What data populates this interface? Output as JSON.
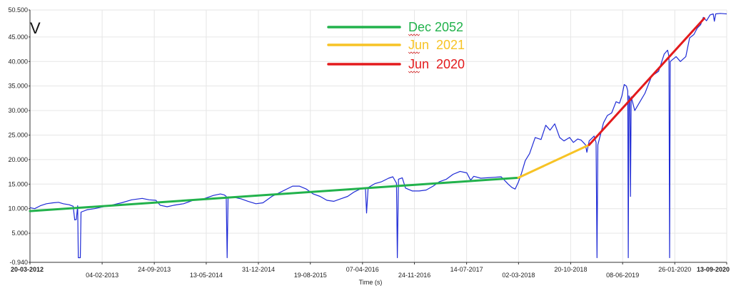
{
  "chart_data": {
    "type": "line",
    "panel_label": "V",
    "xlabel": "Time (s)",
    "ylabel": "",
    "ylim": [
      -0.94,
      50.5
    ],
    "y_ticks": [
      "50.500",
      "45.000",
      "40.000",
      "35.000",
      "30.000",
      "25.000",
      "20.000",
      "15.000",
      "10.000",
      "5.000",
      "-0.940"
    ],
    "y_tick_values": [
      50.5,
      45,
      40,
      35,
      30,
      25,
      20,
      15,
      10,
      5,
      -0.94
    ],
    "xlim": [
      "2012-03-20",
      "2020-09-13"
    ],
    "x_ticks": [
      {
        "label": "20-03-2012",
        "date": "2012-03-20",
        "row": 1,
        "bold": true
      },
      {
        "label": "04-02-2013",
        "date": "2013-02-04",
        "row": 2,
        "bold": false
      },
      {
        "label": "24-09-2013",
        "date": "2013-09-24",
        "row": 1,
        "bold": false
      },
      {
        "label": "13-05-2014",
        "date": "2014-05-13",
        "row": 2,
        "bold": false
      },
      {
        "label": "31-12-2014",
        "date": "2014-12-31",
        "row": 1,
        "bold": false
      },
      {
        "label": "19-08-2015",
        "date": "2015-08-19",
        "row": 2,
        "bold": false
      },
      {
        "label": "07-04-2016",
        "date": "2016-04-07",
        "row": 1,
        "bold": false
      },
      {
        "label": "24-11-2016",
        "date": "2016-11-24",
        "row": 2,
        "bold": false
      },
      {
        "label": "14-07-2017",
        "date": "2017-07-14",
        "row": 1,
        "bold": false
      },
      {
        "label": "02-03-2018",
        "date": "2018-03-02",
        "row": 2,
        "bold": false
      },
      {
        "label": "20-10-2018",
        "date": "2018-10-20",
        "row": 1,
        "bold": false
      },
      {
        "label": "08-06-2019",
        "date": "2019-06-08",
        "row": 2,
        "bold": false
      },
      {
        "label": "26-01-2020",
        "date": "2020-01-26",
        "row": 1,
        "bold": false
      },
      {
        "label": "13-09-2020",
        "date": "2020-09-13",
        "row": 1,
        "bold": true
      }
    ],
    "grid": true,
    "legend_position": "top-center",
    "colors": {
      "series": "#1f2bd6",
      "trend_dec2052": "#22b24c",
      "trend_jun2021": "#f7c325",
      "trend_jun2020": "#e31a1c",
      "grid": "#e6e6e6"
    },
    "series": [
      {
        "name": "",
        "color": "#1f2bd6",
        "points": [
          [
            "2012-03-20",
            10.2
          ],
          [
            "2012-04-10",
            10.0
          ],
          [
            "2012-05-05",
            10.6
          ],
          [
            "2012-06-01",
            11.0
          ],
          [
            "2012-07-01",
            11.2
          ],
          [
            "2012-07-25",
            11.3
          ],
          [
            "2012-08-15",
            11.0
          ],
          [
            "2012-09-10",
            10.8
          ],
          [
            "2012-09-28",
            10.5
          ],
          [
            "2012-10-05",
            7.7
          ],
          [
            "2012-10-12",
            7.8
          ],
          [
            "2012-10-18",
            10.6
          ],
          [
            "2012-10-21",
            0.0
          ],
          [
            "2012-10-30",
            0.0
          ],
          [
            "2012-11-02",
            9.3
          ],
          [
            "2012-12-01",
            9.8
          ],
          [
            "2013-01-01",
            10.0
          ],
          [
            "2013-02-01",
            10.3
          ],
          [
            "2013-03-15",
            10.7
          ],
          [
            "2013-05-01",
            11.2
          ],
          [
            "2013-06-15",
            11.8
          ],
          [
            "2013-08-01",
            12.1
          ],
          [
            "2013-09-01",
            11.8
          ],
          [
            "2013-10-01",
            11.7
          ],
          [
            "2013-10-20",
            10.7
          ],
          [
            "2013-11-20",
            10.4
          ],
          [
            "2013-12-20",
            10.7
          ],
          [
            "2014-02-01",
            11.0
          ],
          [
            "2014-03-15",
            11.7
          ],
          [
            "2014-05-01",
            12.0
          ],
          [
            "2014-06-15",
            12.7
          ],
          [
            "2014-07-15",
            13.0
          ],
          [
            "2014-08-01",
            12.8
          ],
          [
            "2014-08-10",
            12.5
          ],
          [
            "2014-08-14",
            0.0
          ],
          [
            "2014-08-18",
            12.4
          ],
          [
            "2014-09-15",
            12.3
          ],
          [
            "2014-10-15",
            12.0
          ],
          [
            "2014-11-15",
            11.5
          ],
          [
            "2014-12-20",
            11.0
          ],
          [
            "2015-01-20",
            11.2
          ],
          [
            "2015-03-01",
            12.5
          ],
          [
            "2015-04-15",
            13.5
          ],
          [
            "2015-06-01",
            14.6
          ],
          [
            "2015-07-01",
            14.6
          ],
          [
            "2015-08-01",
            14.0
          ],
          [
            "2015-09-01",
            13.0
          ],
          [
            "2015-10-01",
            12.5
          ],
          [
            "2015-11-01",
            11.7
          ],
          [
            "2015-12-01",
            11.5
          ],
          [
            "2016-01-01",
            12.0
          ],
          [
            "2016-02-01",
            12.5
          ],
          [
            "2016-03-01",
            13.4
          ],
          [
            "2016-04-01",
            14.1
          ],
          [
            "2016-04-20",
            14.2
          ],
          [
            "2016-04-25",
            9.1
          ],
          [
            "2016-05-02",
            14.3
          ],
          [
            "2016-06-01",
            15.1
          ],
          [
            "2016-07-01",
            15.5
          ],
          [
            "2016-08-01",
            16.2
          ],
          [
            "2016-08-20",
            16.5
          ],
          [
            "2016-09-05",
            15.2
          ],
          [
            "2016-09-09",
            0.0
          ],
          [
            "2016-09-14",
            16.0
          ],
          [
            "2016-10-01",
            16.3
          ],
          [
            "2016-10-15",
            14.2
          ],
          [
            "2016-11-15",
            13.6
          ],
          [
            "2016-12-15",
            13.6
          ],
          [
            "2017-01-15",
            13.8
          ],
          [
            "2017-02-15",
            14.6
          ],
          [
            "2017-03-15",
            15.5
          ],
          [
            "2017-04-15",
            16.0
          ],
          [
            "2017-05-15",
            17.0
          ],
          [
            "2017-06-15",
            17.6
          ],
          [
            "2017-07-15",
            17.3
          ],
          [
            "2017-08-01",
            15.8
          ],
          [
            "2017-08-15",
            16.6
          ],
          [
            "2017-09-15",
            16.2
          ],
          [
            "2017-10-15",
            16.3
          ],
          [
            "2017-11-15",
            16.4
          ],
          [
            "2017-12-15",
            16.5
          ],
          [
            "2018-01-15",
            15.0
          ],
          [
            "2018-02-01",
            14.3
          ],
          [
            "2018-02-15",
            14.0
          ],
          [
            "2018-03-01",
            15.4
          ],
          [
            "2018-03-15",
            17.2
          ],
          [
            "2018-04-01",
            19.8
          ],
          [
            "2018-04-20",
            21.2
          ],
          [
            "2018-05-15",
            24.5
          ],
          [
            "2018-06-10",
            24.1
          ],
          [
            "2018-07-01",
            27.0
          ],
          [
            "2018-07-20",
            26.0
          ],
          [
            "2018-08-10",
            27.3
          ],
          [
            "2018-09-01",
            24.5
          ],
          [
            "2018-09-20",
            23.8
          ],
          [
            "2018-10-15",
            24.5
          ],
          [
            "2018-11-01",
            23.5
          ],
          [
            "2018-11-20",
            24.2
          ],
          [
            "2018-12-05",
            24.0
          ],
          [
            "2018-12-15",
            23.5
          ],
          [
            "2018-12-25",
            23.0
          ],
          [
            "2018-12-31",
            21.5
          ],
          [
            "2019-01-10",
            23.8
          ],
          [
            "2019-02-01",
            24.8
          ],
          [
            "2019-02-10",
            23.5
          ],
          [
            "2019-02-14",
            0.0
          ],
          [
            "2019-02-18",
            23.0
          ],
          [
            "2019-03-15",
            27.5
          ],
          [
            "2019-04-01",
            29.0
          ],
          [
            "2019-04-20",
            29.5
          ],
          [
            "2019-05-10",
            31.8
          ],
          [
            "2019-05-25",
            31.5
          ],
          [
            "2019-06-05",
            33.0
          ],
          [
            "2019-06-15",
            35.3
          ],
          [
            "2019-06-25",
            35.0
          ],
          [
            "2019-07-01",
            34.0
          ],
          [
            "2019-07-03",
            0.0
          ],
          [
            "2019-07-06",
            33.0
          ],
          [
            "2019-07-10",
            32.5
          ],
          [
            "2019-07-13",
            12.5
          ],
          [
            "2019-07-16",
            32.8
          ],
          [
            "2019-08-01",
            30.0
          ],
          [
            "2019-08-20",
            31.5
          ],
          [
            "2019-09-15",
            33.5
          ],
          [
            "2019-10-15",
            37.0
          ],
          [
            "2019-11-15",
            38.0
          ],
          [
            "2019-12-10",
            41.5
          ],
          [
            "2019-12-25",
            42.3
          ],
          [
            "2019-12-31",
            41.0
          ],
          [
            "2020-01-03",
            0.0
          ],
          [
            "2020-01-06",
            40.0
          ],
          [
            "2020-02-01",
            41.0
          ],
          [
            "2020-02-20",
            40.0
          ],
          [
            "2020-03-15",
            41.0
          ],
          [
            "2020-04-01",
            44.8
          ],
          [
            "2020-04-20",
            45.5
          ],
          [
            "2020-05-05",
            46.8
          ],
          [
            "2020-05-20",
            47.5
          ],
          [
            "2020-06-01",
            49.0
          ],
          [
            "2020-06-15",
            48.3
          ],
          [
            "2020-07-01",
            49.5
          ],
          [
            "2020-07-15",
            49.7
          ],
          [
            "2020-07-20",
            48.2
          ],
          [
            "2020-07-26",
            49.7
          ],
          [
            "2020-08-15",
            49.8
          ],
          [
            "2020-09-13",
            49.7
          ]
        ]
      }
    ],
    "trendlines": [
      {
        "name": "Dec 2052",
        "color": "#22b24c",
        "points": [
          [
            "2012-03-20",
            9.5
          ],
          [
            "2018-03-01",
            16.3
          ]
        ]
      },
      {
        "name": "Jun  2021",
        "color": "#f7c325",
        "points": [
          [
            "2018-03-01",
            16.3
          ],
          [
            "2019-01-10",
            23.0
          ]
        ]
      },
      {
        "name": "Jun  2020",
        "color": "#e31a1c",
        "points": [
          [
            "2019-01-10",
            23.0
          ],
          [
            "2020-06-05",
            48.8
          ]
        ]
      }
    ]
  }
}
